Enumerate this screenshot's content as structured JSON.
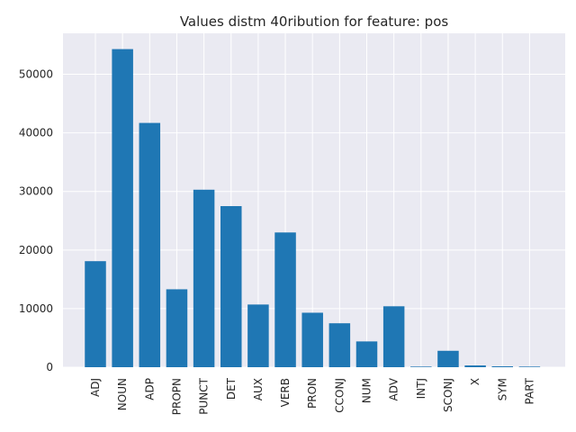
{
  "chart_data": {
    "type": "bar",
    "title": "Values distm 40ribution for feature: pos",
    "xlabel": "",
    "ylabel": "",
    "categories": [
      "ADJ",
      "NOUN",
      "ADP",
      "PROPN",
      "PUNCT",
      "DET",
      "AUX",
      "VERB",
      "PRON",
      "CCONJ",
      "NUM",
      "ADV",
      "INTJ",
      "SCONJ",
      "X",
      "SYM",
      "PART"
    ],
    "values": [
      18100,
      54300,
      41700,
      13300,
      30300,
      27500,
      10700,
      23000,
      9300,
      7500,
      4400,
      10400,
      100,
      2800,
      300,
      150,
      100
    ],
    "ylim": [
      0,
      57000
    ],
    "yticks": [
      0,
      10000,
      20000,
      30000,
      40000,
      50000
    ],
    "grid": true,
    "colors": {
      "bar": "#1f77b4",
      "background": "#eaeaf2",
      "grid": "#ffffff"
    }
  }
}
